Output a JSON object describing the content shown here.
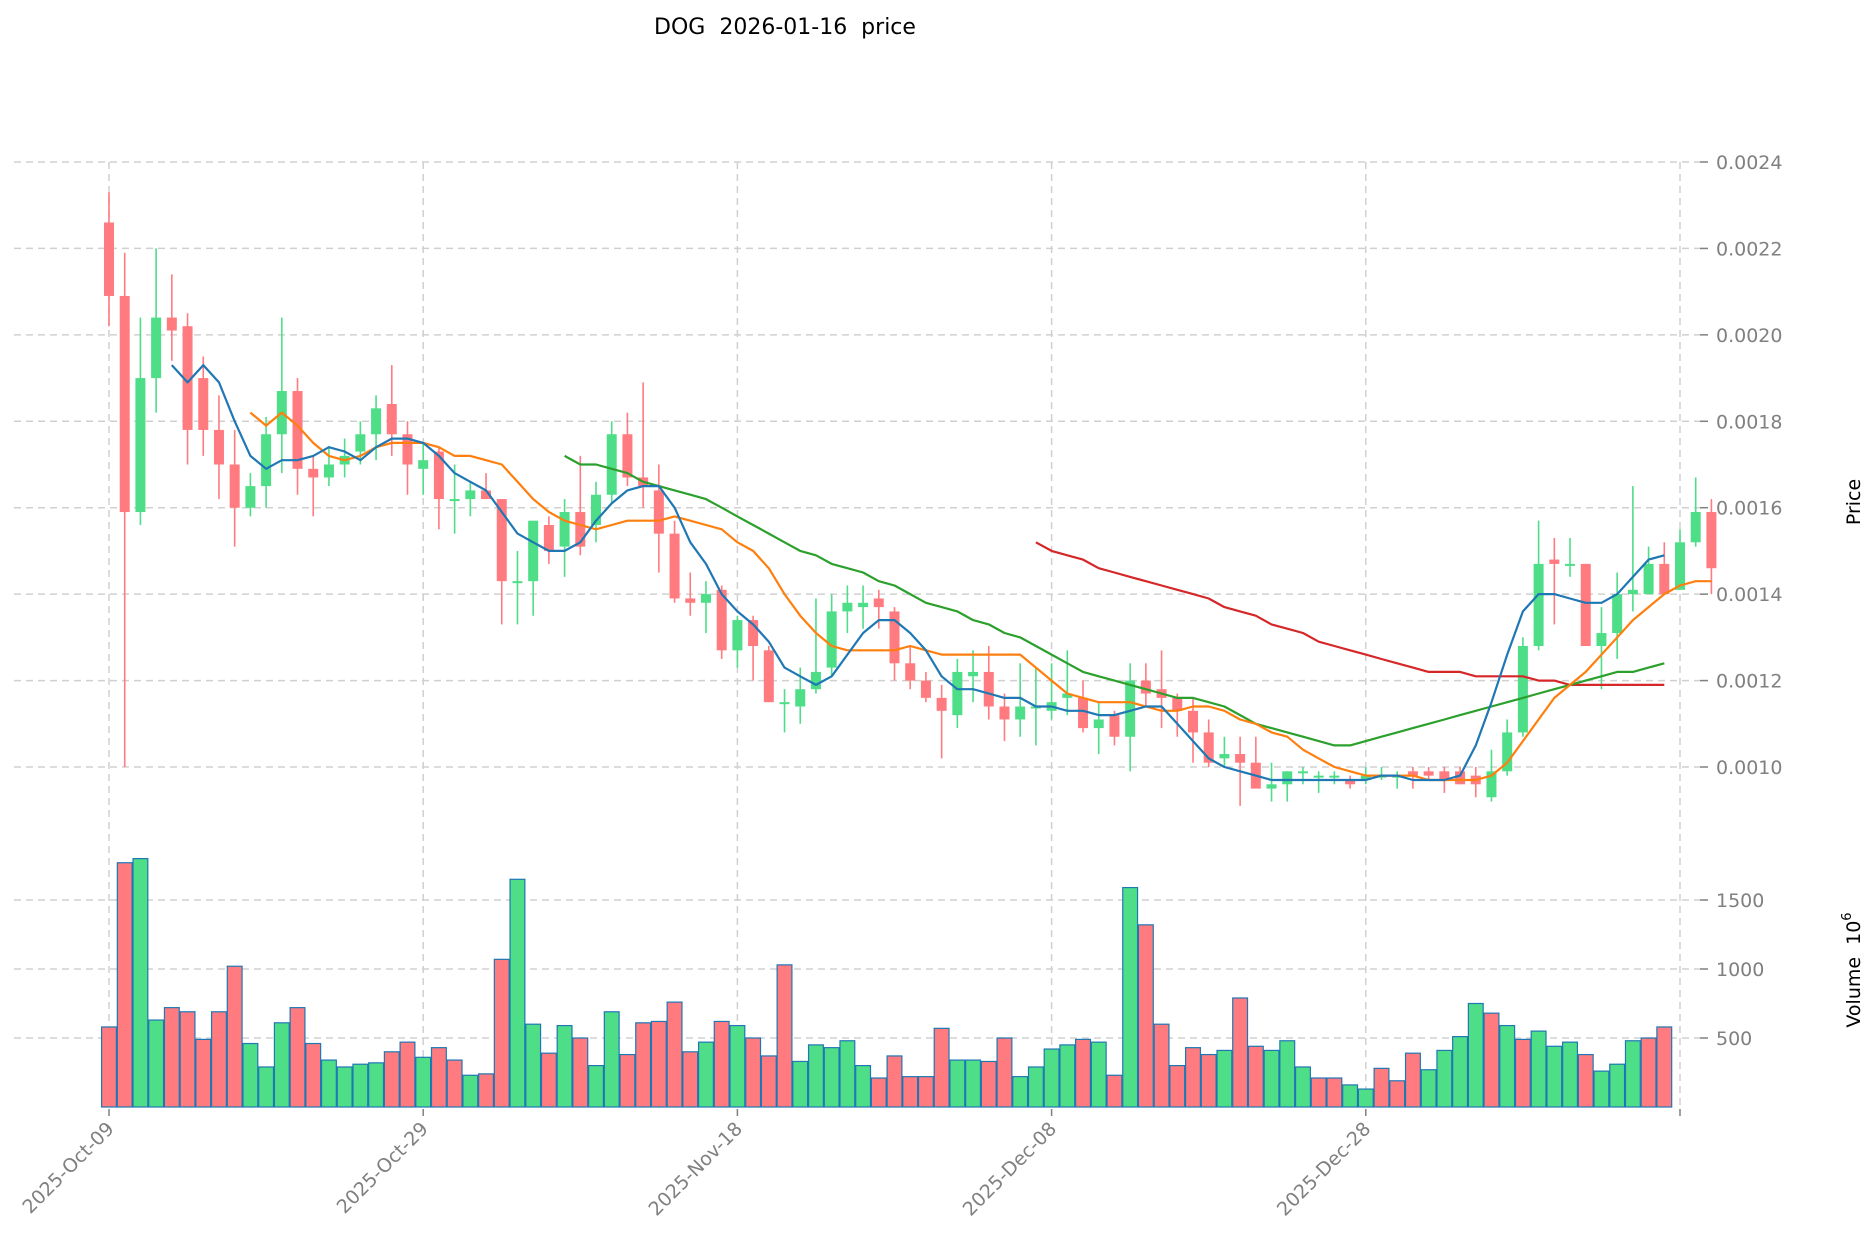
{
  "chart_data": {
    "type": "candlestick",
    "title": "DOG  2026-01-16  price",
    "ticker": "DOG",
    "date": "2026-01-16",
    "price_panel": {
      "ylabel": "Price",
      "ylim": [
        0.00088,
        0.00242
      ],
      "yticks": [
        "0.0010",
        "0.0012",
        "0.0014",
        "0.0016",
        "0.0018",
        "0.0020",
        "0.0022",
        "0.0024"
      ],
      "grid": true
    },
    "volume_panel": {
      "ylabel": "Volume  10^6",
      "ylabel_base": "Volume  10",
      "ylabel_exp": "6",
      "ylim": [
        0,
        1900
      ],
      "yticks": [
        "500",
        "1000",
        "1500"
      ],
      "grid": true
    },
    "xticks": [
      "2025-Oct-09",
      "2025-Oct-29",
      "2025-Nov-18",
      "2025-Dec-08",
      "2025-Dec-28"
    ],
    "xtick_index": [
      0,
      20,
      40,
      60,
      80
    ],
    "colors": {
      "up": "#4ede88",
      "down": "#ff7b7f",
      "volume_edge": "#1f77b4",
      "ma5": "#1f77b4",
      "ma10": "#ff7f0e",
      "ma30": "#2ca02c",
      "ma60": "#d62728"
    },
    "candles": [
      [
        0.00226,
        0.00233,
        0.00202,
        0.00209
      ],
      [
        0.00209,
        0.00219,
        0.001,
        0.00159
      ],
      [
        0.00159,
        0.00204,
        0.00156,
        0.0019
      ],
      [
        0.0019,
        0.0022,
        0.00182,
        0.00204
      ],
      [
        0.00204,
        0.00214,
        0.00194,
        0.00201
      ],
      [
        0.00202,
        0.00205,
        0.0017,
        0.00178
      ],
      [
        0.0019,
        0.00195,
        0.00172,
        0.00178
      ],
      [
        0.00178,
        0.00186,
        0.00162,
        0.0017
      ],
      [
        0.0017,
        0.00178,
        0.00151,
        0.0016
      ],
      [
        0.0016,
        0.00168,
        0.00158,
        0.00165
      ],
      [
        0.00165,
        0.00181,
        0.0016,
        0.00177
      ],
      [
        0.00177,
        0.00204,
        0.00168,
        0.00187
      ],
      [
        0.00187,
        0.0019,
        0.00163,
        0.00169
      ],
      [
        0.00169,
        0.00172,
        0.00158,
        0.00167
      ],
      [
        0.00167,
        0.00174,
        0.00165,
        0.0017
      ],
      [
        0.0017,
        0.00176,
        0.00167,
        0.00172
      ],
      [
        0.00173,
        0.0018,
        0.0017,
        0.00177
      ],
      [
        0.00177,
        0.00186,
        0.00171,
        0.00183
      ],
      [
        0.00184,
        0.00193,
        0.00172,
        0.00177
      ],
      [
        0.00177,
        0.0018,
        0.00163,
        0.0017
      ],
      [
        0.00169,
        0.00175,
        0.00163,
        0.00171
      ],
      [
        0.00173,
        0.00174,
        0.00155,
        0.00162
      ],
      [
        0.00162,
        0.0017,
        0.00154,
        0.00162
      ],
      [
        0.00162,
        0.00166,
        0.00158,
        0.00164
      ],
      [
        0.00164,
        0.00168,
        0.00162,
        0.00162
      ],
      [
        0.00162,
        0.00162,
        0.00133,
        0.00143
      ],
      [
        0.00143,
        0.0015,
        0.00133,
        0.00143
      ],
      [
        0.00143,
        0.00156,
        0.00135,
        0.00157
      ],
      [
        0.00156,
        0.00158,
        0.00147,
        0.0015
      ],
      [
        0.00151,
        0.00162,
        0.00144,
        0.00159
      ],
      [
        0.00159,
        0.00172,
        0.00149,
        0.00151
      ],
      [
        0.00156,
        0.00166,
        0.00152,
        0.00163
      ],
      [
        0.00163,
        0.0018,
        0.00161,
        0.00177
      ],
      [
        0.00177,
        0.00182,
        0.00165,
        0.00167
      ],
      [
        0.00167,
        0.00189,
        0.0016,
        0.00165
      ],
      [
        0.00164,
        0.0017,
        0.00145,
        0.00154
      ],
      [
        0.00154,
        0.00157,
        0.00138,
        0.00139
      ],
      [
        0.00139,
        0.00145,
        0.00135,
        0.00138
      ],
      [
        0.00138,
        0.00143,
        0.00131,
        0.0014
      ],
      [
        0.00141,
        0.00142,
        0.00125,
        0.00127
      ],
      [
        0.00127,
        0.00135,
        0.00123,
        0.00134
      ],
      [
        0.00134,
        0.00135,
        0.0012,
        0.00128
      ],
      [
        0.00127,
        0.00128,
        0.00115,
        0.00115
      ],
      [
        0.00115,
        0.00118,
        0.00108,
        0.00115
      ],
      [
        0.00114,
        0.00123,
        0.0011,
        0.00118
      ],
      [
        0.00118,
        0.00139,
        0.00117,
        0.00122
      ],
      [
        0.00123,
        0.0014,
        0.00121,
        0.00136
      ],
      [
        0.00136,
        0.00142,
        0.00131,
        0.00138
      ],
      [
        0.00137,
        0.00142,
        0.00132,
        0.00138
      ],
      [
        0.00139,
        0.00141,
        0.00132,
        0.00137
      ],
      [
        0.00136,
        0.00137,
        0.0012,
        0.00124
      ],
      [
        0.00124,
        0.00128,
        0.00118,
        0.0012
      ],
      [
        0.0012,
        0.00122,
        0.00115,
        0.00116
      ],
      [
        0.00116,
        0.00119,
        0.00102,
        0.00113
      ],
      [
        0.00112,
        0.00125,
        0.00109,
        0.00122
      ],
      [
        0.00121,
        0.00127,
        0.00115,
        0.00122
      ],
      [
        0.00122,
        0.00128,
        0.00111,
        0.00114
      ],
      [
        0.00114,
        0.00117,
        0.00106,
        0.00111
      ],
      [
        0.00111,
        0.00124,
        0.00107,
        0.00114
      ],
      [
        0.00114,
        0.00123,
        0.00105,
        0.00114
      ],
      [
        0.00113,
        0.00124,
        0.00111,
        0.00115
      ],
      [
        0.00116,
        0.00127,
        0.00112,
        0.00117
      ],
      [
        0.00116,
        0.0012,
        0.00108,
        0.00109
      ],
      [
        0.00109,
        0.00115,
        0.00103,
        0.00111
      ],
      [
        0.00112,
        0.00113,
        0.00105,
        0.00107
      ],
      [
        0.00107,
        0.00124,
        0.00099,
        0.0012
      ],
      [
        0.0012,
        0.00124,
        0.00114,
        0.00117
      ],
      [
        0.00118,
        0.00127,
        0.00109,
        0.00116
      ],
      [
        0.00116,
        0.00117,
        0.00107,
        0.00113
      ],
      [
        0.00113,
        0.00116,
        0.00101,
        0.00108
      ],
      [
        0.00108,
        0.00111,
        0.001,
        0.00101
      ],
      [
        0.00102,
        0.00107,
        0.001,
        0.00103
      ],
      [
        0.00103,
        0.00107,
        0.00091,
        0.00101
      ],
      [
        0.00101,
        0.00107,
        0.00096,
        0.00095
      ],
      [
        0.00095,
        0.00101,
        0.00092,
        0.00096
      ],
      [
        0.00096,
        0.00099,
        0.00092,
        0.00099
      ],
      [
        0.00099,
        0.001,
        0.00096,
        0.00099
      ],
      [
        0.00098,
        0.00099,
        0.00094,
        0.00098
      ],
      [
        0.00098,
        0.00099,
        0.00096,
        0.00098
      ],
      [
        0.00097,
        0.00098,
        0.00095,
        0.00096
      ],
      [
        0.00097,
        0.001,
        0.00096,
        0.00098
      ],
      [
        0.00098,
        0.001,
        0.00097,
        0.00098
      ],
      [
        0.00098,
        0.00099,
        0.00095,
        0.00098
      ],
      [
        0.00099,
        0.001,
        0.00095,
        0.00098
      ],
      [
        0.00099,
        0.001,
        0.00097,
        0.00098
      ],
      [
        0.00099,
        0.001,
        0.00094,
        0.00097
      ],
      [
        0.00099,
        0.001,
        0.00096,
        0.00096
      ],
      [
        0.00098,
        0.001,
        0.00093,
        0.00096
      ],
      [
        0.00093,
        0.00104,
        0.00092,
        0.00099
      ],
      [
        0.00099,
        0.00111,
        0.00098,
        0.00108
      ],
      [
        0.00108,
        0.0013,
        0.00107,
        0.00128
      ],
      [
        0.00128,
        0.00157,
        0.00127,
        0.00147
      ],
      [
        0.00148,
        0.00153,
        0.00133,
        0.00147
      ],
      [
        0.00147,
        0.00153,
        0.00144,
        0.00147
      ],
      [
        0.00147,
        0.00147,
        0.00128,
        0.00128
      ],
      [
        0.00128,
        0.00137,
        0.00118,
        0.00131
      ],
      [
        0.00131,
        0.00145,
        0.00125,
        0.0014
      ],
      [
        0.0014,
        0.00165,
        0.00136,
        0.00141
      ],
      [
        0.0014,
        0.00151,
        0.0014,
        0.00147
      ],
      [
        0.00147,
        0.00152,
        0.0014,
        0.0014
      ],
      [
        0.00141,
        0.00155,
        0.00141,
        0.00152
      ],
      [
        0.00152,
        0.00167,
        0.00151,
        0.00159
      ],
      [
        0.00159,
        0.00162,
        0.0014,
        0.00146
      ]
    ],
    "volume": [
      580,
      1770,
      1800,
      630,
      720,
      690,
      490,
      690,
      1020,
      460,
      290,
      610,
      720,
      460,
      340,
      290,
      310,
      320,
      400,
      470,
      360,
      430,
      340,
      230,
      240,
      1070,
      1650,
      600,
      390,
      590,
      500,
      300,
      690,
      380,
      610,
      620,
      760,
      400,
      470,
      620,
      590,
      500,
      370,
      1030,
      330,
      450,
      430,
      480,
      300,
      210,
      370,
      220,
      220,
      570,
      340,
      340,
      330,
      500,
      220,
      290,
      420,
      450,
      490,
      470,
      230,
      1590,
      1320,
      600,
      300,
      430,
      380,
      410,
      790,
      440,
      410,
      480,
      290,
      210,
      210,
      160,
      130,
      280,
      190,
      390,
      270,
      410,
      510,
      750,
      680,
      590,
      490,
      550,
      440,
      470,
      380,
      260,
      310,
      480,
      500,
      580
    ],
    "volume_up": [
      0,
      0,
      1,
      1,
      0,
      0,
      0,
      0,
      0,
      1,
      1,
      1,
      0,
      0,
      1,
      1,
      1,
      1,
      0,
      0,
      1,
      0,
      0,
      1,
      0,
      0,
      1,
      1,
      0,
      1,
      0,
      1,
      1,
      0,
      0,
      0,
      0,
      0,
      1,
      0,
      1,
      0,
      0,
      0,
      1,
      1,
      1,
      1,
      1,
      0,
      0,
      0,
      0,
      0,
      1,
      1,
      0,
      0,
      1,
      1,
      1,
      1,
      0,
      1,
      0,
      1,
      0,
      0,
      0,
      0,
      0,
      1,
      0,
      0,
      1,
      1,
      1,
      0,
      0,
      1,
      1,
      0,
      0,
      0,
      1,
      1,
      1,
      1,
      0,
      1,
      0,
      1,
      1,
      1,
      0,
      1,
      1,
      1,
      0,
      0
    ],
    "ma5": {
      "start": 4,
      "values": [
        0.00193,
        0.00189,
        0.00193,
        0.00189,
        0.0018,
        0.00172,
        0.00169,
        0.00171,
        0.00171,
        0.00172,
        0.00174,
        0.00173,
        0.00171,
        0.00174,
        0.00176,
        0.00176,
        0.00175,
        0.00172,
        0.00168,
        0.00166,
        0.00164,
        0.00159,
        0.00154,
        0.00152,
        0.0015,
        0.0015,
        0.00152,
        0.00157,
        0.00161,
        0.00164,
        0.00165,
        0.00165,
        0.0016,
        0.00152,
        0.00147,
        0.0014,
        0.00136,
        0.00133,
        0.00129,
        0.00123,
        0.00121,
        0.00119,
        0.00121,
        0.00126,
        0.00131,
        0.00134,
        0.00134,
        0.00131,
        0.00127,
        0.00121,
        0.00118,
        0.00118,
        0.00117,
        0.00116,
        0.00116,
        0.00114,
        0.00114,
        0.00113,
        0.00113,
        0.00112,
        0.00112,
        0.00113,
        0.00114,
        0.00114,
        0.0011,
        0.00106,
        0.00102,
        0.001,
        0.00099,
        0.00098,
        0.00097,
        0.00097,
        0.00097,
        0.00097,
        0.00097,
        0.00097,
        0.00097,
        0.00098,
        0.00098,
        0.00097,
        0.00097,
        0.00097,
        0.00098,
        0.00105,
        0.00115,
        0.00126,
        0.00136,
        0.0014,
        0.0014,
        0.00139,
        0.00138,
        0.00138,
        0.0014,
        0.00144,
        0.00148,
        0.00149
      ]
    },
    "ma10": {
      "start": 9,
      "values": [
        0.00182,
        0.00179,
        0.00182,
        0.00179,
        0.00175,
        0.00172,
        0.00171,
        0.00172,
        0.00174,
        0.00175,
        0.00175,
        0.00175,
        0.00174,
        0.00172,
        0.00172,
        0.00171,
        0.0017,
        0.00166,
        0.00162,
        0.00159,
        0.00157,
        0.00156,
        0.00155,
        0.00156,
        0.00157,
        0.00157,
        0.00157,
        0.00158,
        0.00157,
        0.00156,
        0.00155,
        0.00152,
        0.0015,
        0.00146,
        0.0014,
        0.00135,
        0.00131,
        0.00128,
        0.00127,
        0.00127,
        0.00127,
        0.00127,
        0.00128,
        0.00127,
        0.00126,
        0.00126,
        0.00126,
        0.00126,
        0.00126,
        0.00126,
        0.00123,
        0.0012,
        0.00117,
        0.00116,
        0.00115,
        0.00115,
        0.00115,
        0.00114,
        0.00113,
        0.00113,
        0.00114,
        0.00114,
        0.00113,
        0.00111,
        0.0011,
        0.00108,
        0.00107,
        0.00104,
        0.00102,
        0.001,
        0.00099,
        0.00098,
        0.00098,
        0.00098,
        0.00098,
        0.00097,
        0.00097,
        0.00097,
        0.00097,
        0.00098,
        0.00101,
        0.00106,
        0.00111,
        0.00116,
        0.00119,
        0.00122,
        0.00126,
        0.0013,
        0.00134,
        0.00137,
        0.0014,
        0.00142,
        0.00143,
        0.00143
      ]
    },
    "ma30": {
      "start": 29,
      "values": [
        0.00172,
        0.0017,
        0.0017,
        0.00169,
        0.00168,
        0.00166,
        0.00165,
        0.00164,
        0.00163,
        0.00162,
        0.0016,
        0.00158,
        0.00156,
        0.00154,
        0.00152,
        0.0015,
        0.00149,
        0.00147,
        0.00146,
        0.00145,
        0.00143,
        0.00142,
        0.0014,
        0.00138,
        0.00137,
        0.00136,
        0.00134,
        0.00133,
        0.00131,
        0.0013,
        0.00128,
        0.00126,
        0.00124,
        0.00122,
        0.00121,
        0.0012,
        0.00119,
        0.00118,
        0.00117,
        0.00116,
        0.00116,
        0.00115,
        0.00114,
        0.00112,
        0.0011,
        0.00109,
        0.00108,
        0.00107,
        0.00106,
        0.00105,
        0.00105,
        0.00106,
        0.00107,
        0.00108,
        0.00109,
        0.0011,
        0.00111,
        0.00112,
        0.00113,
        0.00114,
        0.00115,
        0.00116,
        0.00117,
        0.00118,
        0.00119,
        0.0012,
        0.00121,
        0.00122,
        0.00122,
        0.00123,
        0.00124
      ]
    },
    "ma60": {
      "start": 59,
      "values": [
        0.00152,
        0.0015,
        0.00149,
        0.00148,
        0.00146,
        0.00145,
        0.00144,
        0.00143,
        0.00142,
        0.00141,
        0.0014,
        0.00139,
        0.00137,
        0.00136,
        0.00135,
        0.00133,
        0.00132,
        0.00131,
        0.00129,
        0.00128,
        0.00127,
        0.00126,
        0.00125,
        0.00124,
        0.00123,
        0.00122,
        0.00122,
        0.00122,
        0.00121,
        0.00121,
        0.00121,
        0.00121,
        0.0012,
        0.0012,
        0.00119,
        0.00119,
        0.00119,
        0.00119,
        0.00119,
        0.00119,
        0.00119
      ]
    }
  }
}
